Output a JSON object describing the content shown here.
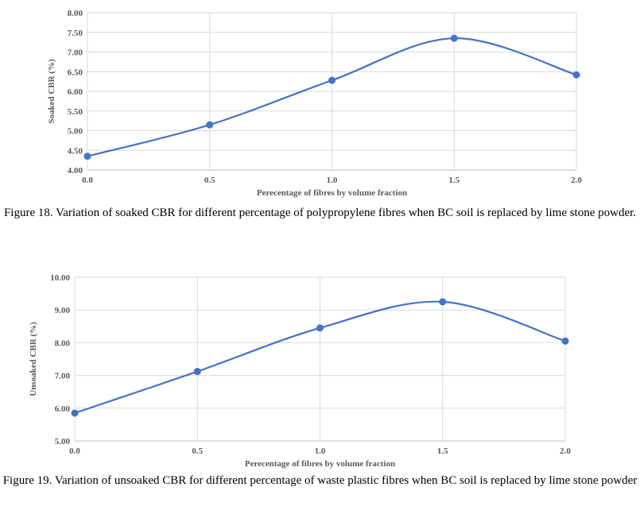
{
  "charts": [
    {
      "caption": "Figure 18. Variation of soaked CBR for different percentage of polypropylene fibres when BC soil is replaced by lime stone powder.",
      "chart_data": {
        "type": "line",
        "x": [
          0.0,
          0.5,
          1.0,
          1.5,
          2.0
        ],
        "x_tick_labels": [
          "0.0",
          "0.5",
          "1.0",
          "1.5",
          "2.0"
        ],
        "series": [
          {
            "values": [
              4.35,
              5.15,
              6.28,
              7.35,
              6.42
            ]
          }
        ],
        "xlabel": "Perecentage of fibres by volume fraction",
        "ylabel": "Soaked CBR (%)",
        "ylim": [
          4.0,
          8.0
        ],
        "y_ticks": [
          4.0,
          4.5,
          5.0,
          5.5,
          6.0,
          6.5,
          7.0,
          7.5,
          8.0
        ],
        "y_tick_labels": [
          "4.00",
          "4.50",
          "5.00",
          "5.50",
          "6.00",
          "6.50",
          "7.00",
          "7.50",
          "8.00"
        ],
        "grid": true,
        "smooth": true,
        "line_color": "#4472c4"
      }
    },
    {
      "caption": "Figure 19. Variation of unsoaked CBR for different percentage of waste plastic fibres when BC soil is replaced by lime stone powder",
      "chart_data": {
        "type": "line",
        "x": [
          0.0,
          0.5,
          1.0,
          1.5,
          2.0
        ],
        "x_tick_labels": [
          "0.0",
          "0.5",
          "1.0",
          "1.5",
          "2.0"
        ],
        "series": [
          {
            "values": [
              5.85,
              7.12,
              8.45,
              9.25,
              8.05
            ]
          }
        ],
        "xlabel": "Perecentage of fibres by volume fraction",
        "ylabel": "Unsoaked CBR (%)",
        "ylim": [
          5.0,
          10.0
        ],
        "y_ticks": [
          5.0,
          6.0,
          7.0,
          8.0,
          9.0,
          10.0
        ],
        "y_tick_labels": [
          "5.00",
          "6.00",
          "7.00",
          "8.00",
          "9.00",
          "10.00"
        ],
        "grid": true,
        "smooth": true,
        "line_color": "#4472c4"
      }
    }
  ]
}
